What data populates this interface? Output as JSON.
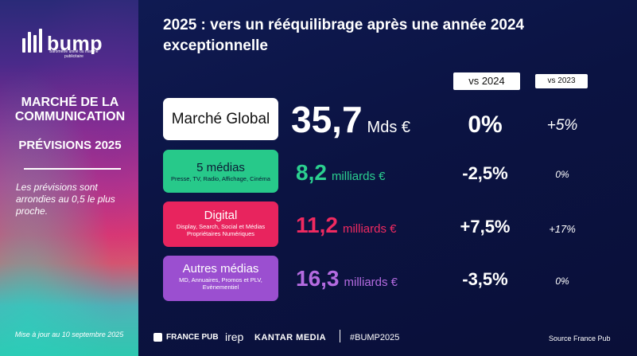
{
  "sidebar": {
    "logo_text": "bump",
    "logo_sub": "baromètre unifié du marché publicitaire",
    "heading_line1": "MARCHÉ DE LA",
    "heading_line2": "COMMUNICATION",
    "subheading": "PRÉVISIONS 2025",
    "note": "Les prévisions sont arrondies au 0,5 le plus proche.",
    "update": "Mise à jour au 10 septembre 2025"
  },
  "title": "2025 : vers un rééquilibrage après une année 2024 exceptionnelle",
  "columns": {
    "vs_2024": "vs 2024",
    "vs_2023": "vs 2023"
  },
  "rows": [
    {
      "label": "Marché Global",
      "sub": "",
      "value": "35,7",
      "unit": "Mds €",
      "vs2024": "0%",
      "vs2023": "+5%",
      "color": "#ffffff"
    },
    {
      "label": "5 médias",
      "sub": "Presse, TV, Radio, Affichage, Cinéma",
      "value": "8,2",
      "unit": "milliards €",
      "vs2024": "-2,5%",
      "vs2023": "0%",
      "color": "#27c98a"
    },
    {
      "label": "Digital",
      "sub": "Display, Search, Social et Médias Propriétaires Numériques",
      "value": "11,2",
      "unit": "milliards €",
      "vs2024": "+7,5%",
      "vs2023": "+17%",
      "color": "#e8245e"
    },
    {
      "label": "Autres médias",
      "sub": "MD, Annuaires, Promos et PLV, Evènementiel",
      "value": "16,3",
      "unit": "milliards €",
      "vs2024": "-3,5%",
      "vs2023": "0%",
      "color": "#9b4fd0"
    }
  ],
  "footer": {
    "france_pub": "FRANCE PUB",
    "irep": "irep",
    "kantar": "KANTAR MEDIA",
    "hashtag": "#BUMP2025",
    "source": "Source France Pub"
  }
}
